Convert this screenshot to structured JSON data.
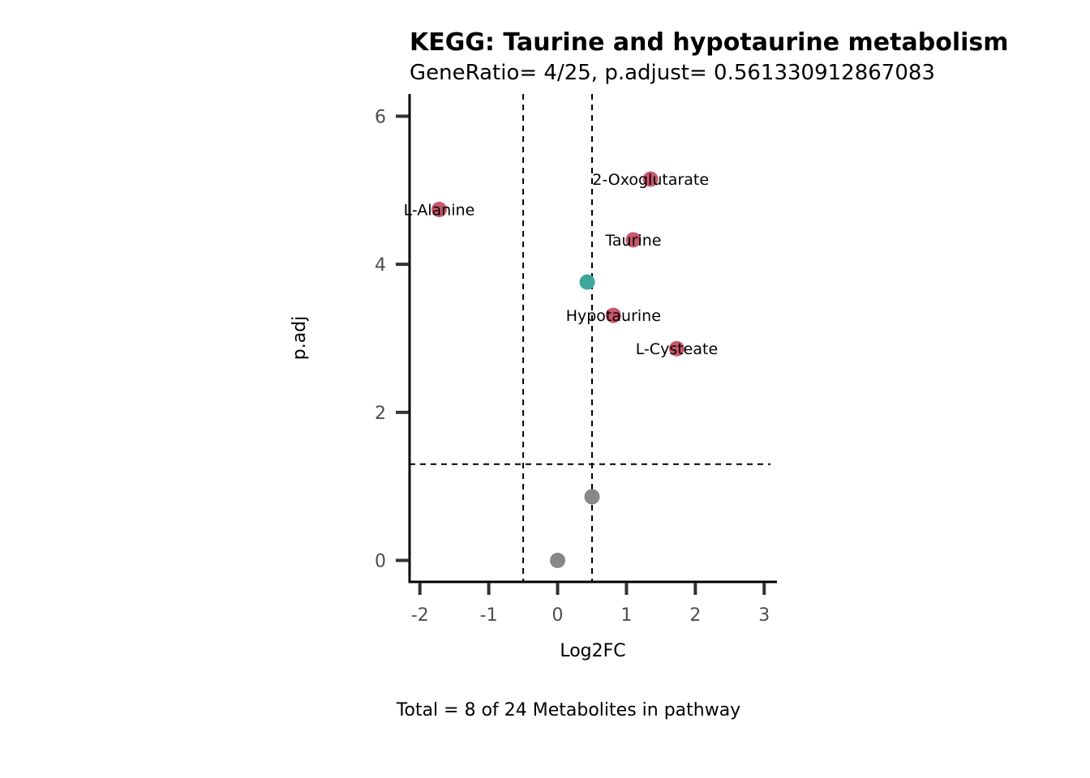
{
  "chart_data": {
    "type": "scatter",
    "title": "KEGG: Taurine and hypotaurine metabolism",
    "subtitle": "GeneRatio= 4/25, p.adjust= 0.561330912867083",
    "xlabel": "Log2FC",
    "ylabel": "p.adj",
    "caption": "Total = 8 of 24 Metabolites in pathway",
    "xlim": [
      -2.15,
      3.15
    ],
    "ylim": [
      -0.29,
      6.3
    ],
    "x_ticks": [
      -2,
      -1,
      0,
      1,
      2,
      3
    ],
    "y_ticks": [
      0,
      2,
      4,
      6
    ],
    "vlines": [
      -0.5,
      0.5
    ],
    "hline": 1.3,
    "grid": false,
    "legend": "none",
    "colors": {
      "significant": "#c8586c",
      "other": "#3da89a",
      "not_significant": "#888888"
    },
    "points": [
      {
        "x": 1.35,
        "y": 5.15,
        "label": "2-Oxoglutarate",
        "group": "significant"
      },
      {
        "x": -1.72,
        "y": 4.74,
        "label": "L-Alanine",
        "group": "significant"
      },
      {
        "x": 1.1,
        "y": 4.33,
        "label": "Taurine",
        "group": "significant"
      },
      {
        "x": 0.43,
        "y": 3.76,
        "label": "",
        "group": "other"
      },
      {
        "x": 0.81,
        "y": 3.31,
        "label": "Hypotaurine",
        "group": "significant"
      },
      {
        "x": 1.73,
        "y": 2.86,
        "label": "L-Cysteate",
        "group": "significant"
      },
      {
        "x": 0.5,
        "y": 0.86,
        "label": "",
        "group": "not_significant"
      },
      {
        "x": 0.0,
        "y": 0.0,
        "label": "",
        "group": "not_significant"
      }
    ]
  }
}
